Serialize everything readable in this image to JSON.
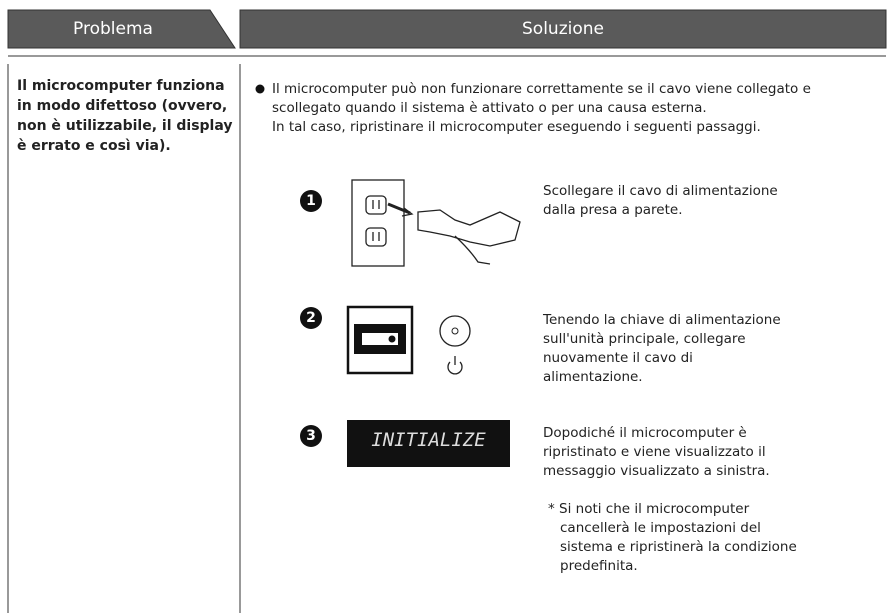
{
  "header": {
    "problem": "Problema",
    "solution": "Soluzione"
  },
  "problem": "Il microcomputer funziona in modo difettoso (ovvero, non è utilizzabile, il display è errato e così via).",
  "solution": {
    "intro": [
      "Il microcomputer può non funzionare correttamente se il cavo viene collegato e scollegato quando il sistema è attivato o per una causa esterna.",
      "In tal caso, ripristinare il microcomputer eseguendo i seguenti passaggi."
    ],
    "steps": [
      {
        "number": "1",
        "text": "Scollegare il cavo di alimentazione dalla presa a parete."
      },
      {
        "number": "2",
        "text": "Tenendo la chiave di alimentazione sull'unità principale, collegare nuovamente il cavo di alimentazione."
      },
      {
        "number": "3",
        "display": "INITIALIZE",
        "text": "Dopodiché il microcomputer è ripristinato e viene visualizzato il messaggio visualizzato a sinistra.",
        "note": "* Si noti che il microcomputer cancellerà le impostazioni del sistema e ripristinerà la condizione predefinita."
      }
    ]
  }
}
